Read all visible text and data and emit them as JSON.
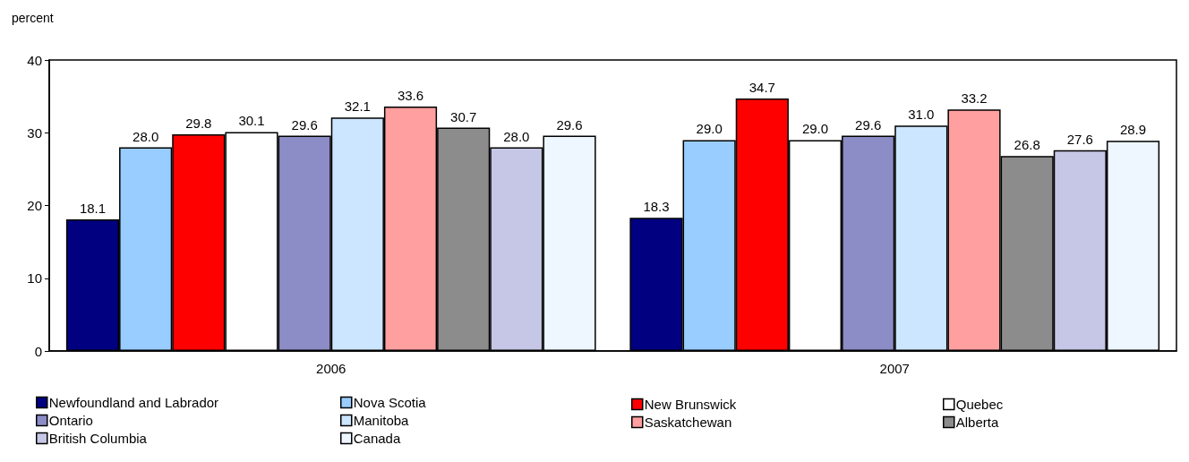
{
  "chart_data": {
    "type": "bar",
    "ylabel": "percent",
    "categories": [
      "2006",
      "2007"
    ],
    "series": [
      {
        "name": "Newfoundland and Labrador",
        "color": "#000080",
        "values": [
          18.1,
          18.3
        ],
        "value_labels": [
          "18.1",
          "18.3"
        ]
      },
      {
        "name": "Nova Scotia",
        "color": "#99ccff",
        "values": [
          28.0,
          29.0
        ],
        "value_labels": [
          "28.0",
          "29.0"
        ]
      },
      {
        "name": "New Brunswick",
        "color": "#ff0000",
        "values": [
          29.8,
          34.7
        ],
        "value_labels": [
          "29.8",
          "34.7"
        ]
      },
      {
        "name": "Quebec",
        "color": "#ffffff",
        "values": [
          30.1,
          29.0
        ],
        "value_labels": [
          "30.1",
          "29.0"
        ]
      },
      {
        "name": "Ontario",
        "color": "#8c8cc6",
        "values": [
          29.6,
          29.6
        ],
        "value_labels": [
          "29.6",
          "29.6"
        ]
      },
      {
        "name": "Manitoba",
        "color": "#cce6ff",
        "values": [
          32.1,
          31.0
        ],
        "value_labels": [
          "32.1",
          "31.0"
        ]
      },
      {
        "name": "Saskatchewan",
        "color": "#ff9f9f",
        "values": [
          33.6,
          33.2
        ],
        "value_labels": [
          "33.6",
          "33.2"
        ]
      },
      {
        "name": "Alberta",
        "color": "#8c8c8c",
        "values": [
          30.7,
          26.8
        ],
        "value_labels": [
          "30.7",
          "26.8"
        ]
      },
      {
        "name": "British Columbia",
        "color": "#c6c6e6",
        "values": [
          28.0,
          27.6
        ],
        "value_labels": [
          "28.0",
          "27.6"
        ]
      },
      {
        "name": "Canada",
        "color": "#eef6ff",
        "values": [
          29.6,
          28.9
        ],
        "value_labels": [
          "29.6",
          "28.9"
        ]
      }
    ],
    "ylim": [
      0,
      40
    ],
    "yticks": [
      0,
      10,
      20,
      30,
      40
    ],
    "grid": false,
    "legend": "bottom"
  }
}
